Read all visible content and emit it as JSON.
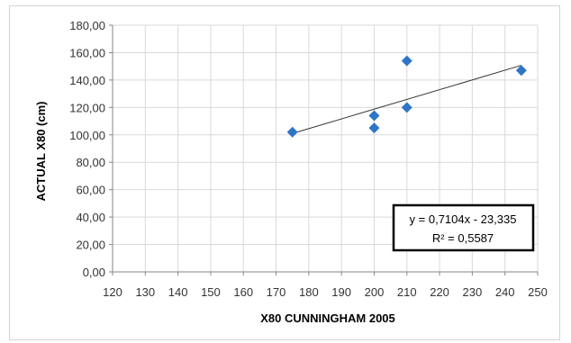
{
  "chart_data": {
    "type": "scatter",
    "xlabel": "X80 CUNNINGHAM 2005",
    "ylabel": "ACTUAL  X80 (cm)",
    "xlim": [
      120,
      250
    ],
    "ylim": [
      0,
      180
    ],
    "x_ticks": [
      120,
      130,
      140,
      150,
      160,
      170,
      180,
      190,
      200,
      210,
      220,
      230,
      240,
      250
    ],
    "y_ticks": [
      "0,00",
      "20,00",
      "40,00",
      "60,00",
      "80,00",
      "100,00",
      "120,00",
      "140,00",
      "160,00",
      "180,00"
    ],
    "grid": true,
    "marker_color": "#2e75c8",
    "series": [
      {
        "points": [
          {
            "x": 175,
            "y": 102
          },
          {
            "x": 200,
            "y": 105
          },
          {
            "x": 200,
            "y": 114
          },
          {
            "x": 210,
            "y": 120
          },
          {
            "x": 210,
            "y": 154
          },
          {
            "x": 245,
            "y": 147
          }
        ]
      }
    ],
    "trendline": {
      "slope": 0.7104,
      "intercept": -23.335,
      "x_start": 175,
      "x_end": 245,
      "equation": "y = 0,7104x - 23,335",
      "r_squared": "R² = 0,5587"
    }
  }
}
